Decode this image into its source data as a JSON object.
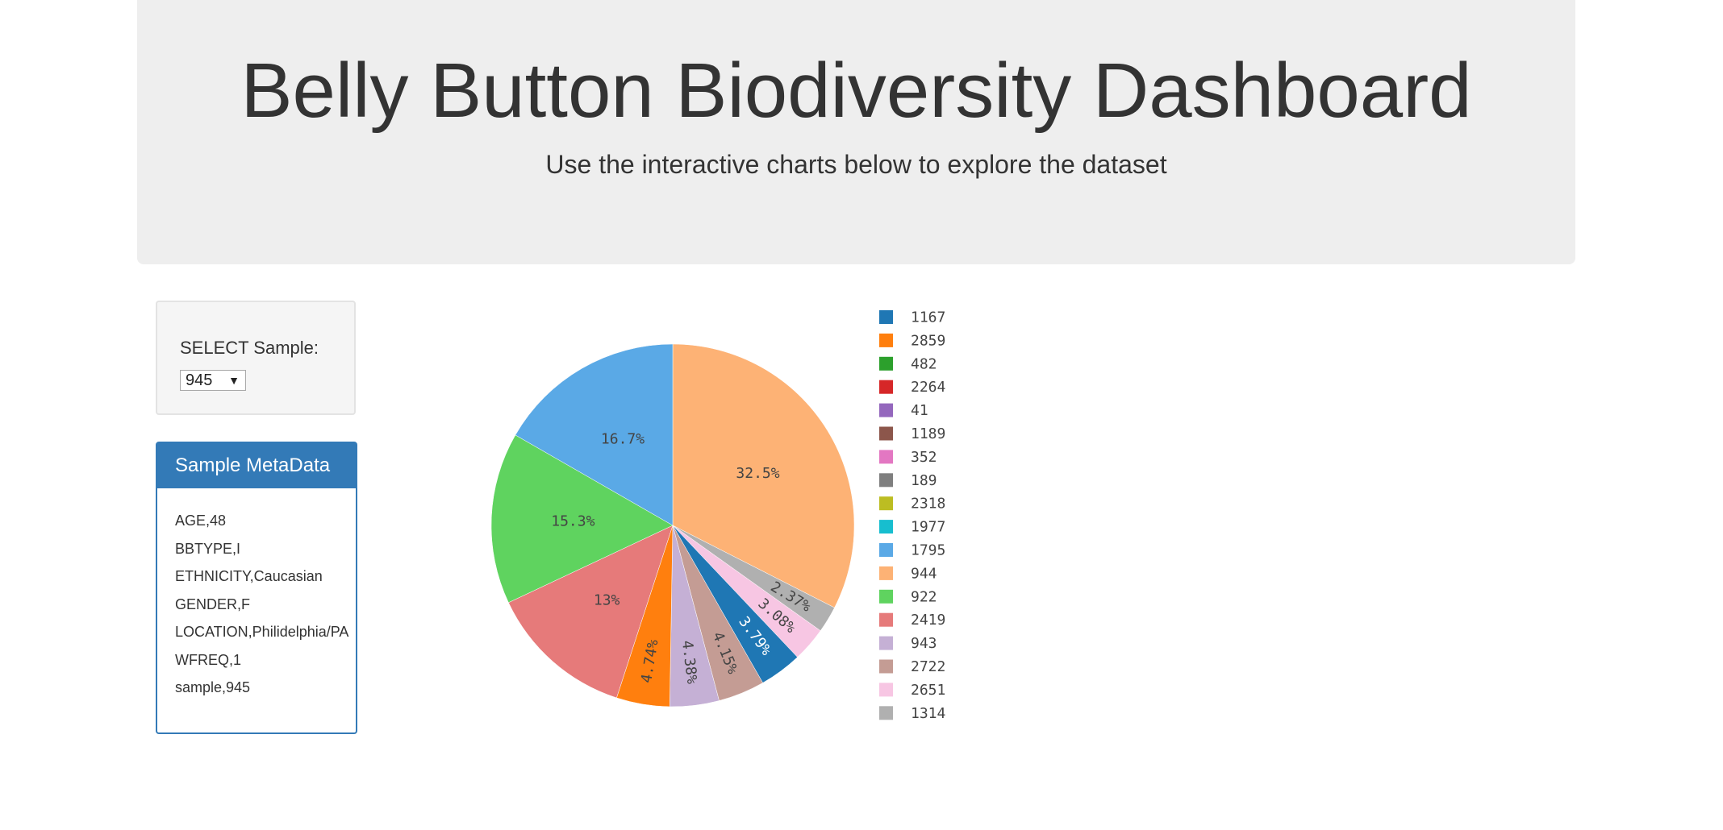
{
  "header": {
    "title": "Belly Button Biodiversity Dashboard",
    "subtitle": "Use the interactive charts below to explore the dataset"
  },
  "selector": {
    "label": "SELECT Sample:",
    "selected": "945"
  },
  "metadata_panel": {
    "title": "Sample MetaData",
    "rows": [
      "AGE,48",
      "BBTYPE,I",
      "ETHNICITY,Caucasian",
      "GENDER,F",
      "LOCATION,Philidelphia/PA",
      "WFREQ,1",
      "sample,945"
    ]
  },
  "chart_data": {
    "type": "pie",
    "labels": [
      "1167",
      "2859",
      "482",
      "2264",
      "41",
      "1189",
      "352",
      "189",
      "2318",
      "1977",
      "1795",
      "944",
      "922",
      "2419",
      "943",
      "2722",
      "2651",
      "1314"
    ],
    "colors": [
      "#1f77b4",
      "#ff7f0e",
      "#2ca02c",
      "#d62728",
      "#9467bd",
      "#8c564b",
      "#e377c2",
      "#7f7f7f",
      "#bcbd22",
      "#17becf",
      "#5aa9e6",
      "#fdb275",
      "#5fd35f",
      "#e67a7a",
      "#c5b0d5",
      "#c49c94",
      "#f7c6e3",
      "#b0b0b0"
    ],
    "slices": [
      {
        "label": "944",
        "percent": 32.5,
        "text": "32.5%",
        "color": "#fdb275"
      },
      {
        "label": "1314",
        "percent": 2.37,
        "text": "2.37%",
        "color": "#b0b0b0"
      },
      {
        "label": "2651",
        "percent": 3.08,
        "text": "3.08%",
        "color": "#f7c6e3"
      },
      {
        "label": "1167",
        "percent": 3.79,
        "text": "3.79%",
        "color": "#1f77b4"
      },
      {
        "label": "2722",
        "percent": 4.15,
        "text": "4.15%",
        "color": "#c49c94"
      },
      {
        "label": "943",
        "percent": 4.38,
        "text": "4.38%",
        "color": "#c5b0d5"
      },
      {
        "label": "2859",
        "percent": 4.74,
        "text": "4.74%",
        "color": "#ff7f0e"
      },
      {
        "label": "2419",
        "percent": 13,
        "text": "13%",
        "color": "#e67a7a"
      },
      {
        "label": "922",
        "percent": 15.3,
        "text": "15.3%",
        "color": "#5fd35f"
      },
      {
        "label": "1795",
        "percent": 16.7,
        "text": "16.7%",
        "color": "#5aa9e6"
      }
    ],
    "legend_placement": "right"
  }
}
